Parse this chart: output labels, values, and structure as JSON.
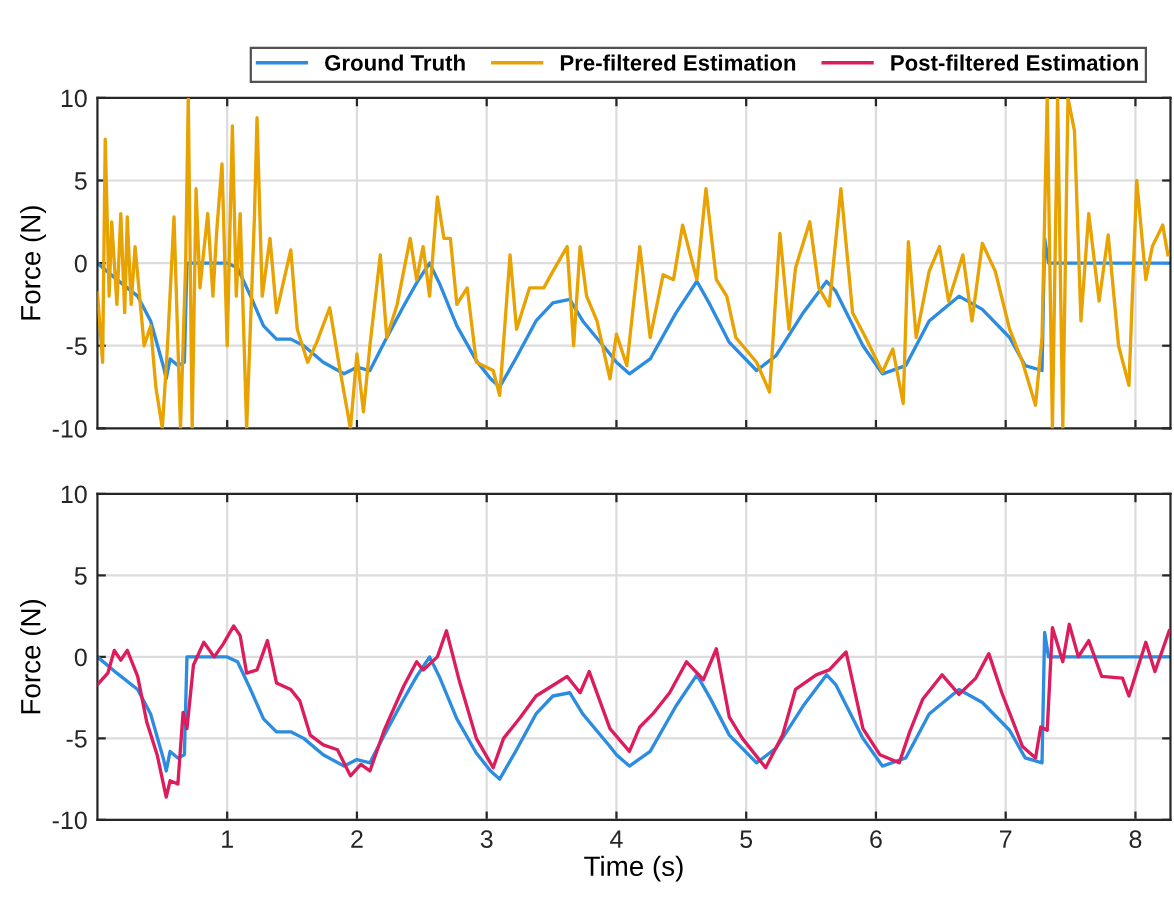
{
  "chart_data": [
    {
      "type": "line",
      "ylabel": "Force (N)",
      "xlim": [
        0,
        8.27
      ],
      "ylim": [
        -10,
        10
      ],
      "xticks": [
        1,
        2,
        3,
        4,
        5,
        6,
        7,
        8
      ],
      "yticks": [
        -10,
        -5,
        0,
        5,
        10
      ],
      "grid": true,
      "legend": "top",
      "tick_labels": "y",
      "line_style": "solid",
      "series": [
        {
          "name": "Ground Truth",
          "color": "#2b8ce0",
          "x": [
            0,
            0.15,
            0.31,
            0.41,
            0.51,
            0.53,
            0.56,
            0.62,
            0.67,
            0.68,
            0.69,
            0.87,
            1,
            1.08,
            1.18,
            1.28,
            1.38,
            1.49,
            1.59,
            1.74,
            1.9,
            2,
            2.1,
            2.21,
            2.36,
            2.46,
            2.56,
            2.64,
            2.77,
            2.92,
            3.03,
            3.1,
            3.23,
            3.38,
            3.51,
            3.64,
            3.74,
            3.95,
            4,
            4.1,
            4.26,
            4.46,
            4.62,
            4.72,
            4.87,
            5.08,
            5.23,
            5.44,
            5.62,
            5.69,
            5.9,
            6.05,
            6.23,
            6.41,
            6.64,
            6.82,
            7.03,
            7.15,
            7.28,
            7.3,
            7.33,
            8.25
          ],
          "values": [
            0,
            -1,
            -2,
            -3.5,
            -6.3,
            -7,
            -5.8,
            -6.2,
            -6,
            -3,
            0,
            0,
            0,
            -0.3,
            -2,
            -3.8,
            -4.6,
            -4.6,
            -5,
            -6,
            -6.7,
            -6.3,
            -6.5,
            -4.8,
            -2.6,
            -1.2,
            0,
            -1.3,
            -3.8,
            -5.9,
            -7,
            -7.5,
            -5.7,
            -3.5,
            -2.4,
            -2.2,
            -3.5,
            -5.5,
            -6,
            -6.7,
            -5.8,
            -3,
            -1.1,
            -2.5,
            -4.8,
            -6.5,
            -5.6,
            -3,
            -1.1,
            -1.7,
            -5,
            -6.7,
            -6.2,
            -3.5,
            -2,
            -2.8,
            -4.5,
            -6.2,
            -6.5,
            1.5,
            0,
            0
          ]
        },
        {
          "name": "Pre-filtered Estimation",
          "color": "#e8a202",
          "x": [
            0,
            0.04,
            0.06,
            0.09,
            0.11,
            0.15,
            0.18,
            0.21,
            0.23,
            0.26,
            0.29,
            0.36,
            0.41,
            0.45,
            0.5,
            0.54,
            0.59,
            0.64,
            0.68,
            0.7,
            0.73,
            0.76,
            0.79,
            0.85,
            0.89,
            0.92,
            0.96,
            1,
            1.04,
            1.07,
            1.1,
            1.15,
            1.21,
            1.23,
            1.27,
            1.33,
            1.38,
            1.49,
            1.54,
            1.62,
            1.69,
            1.79,
            1.87,
            1.95,
            2,
            2.05,
            2.1,
            2.18,
            2.23,
            2.31,
            2.41,
            2.46,
            2.51,
            2.56,
            2.62,
            2.67,
            2.72,
            2.77,
            2.85,
            2.92,
            3.05,
            3.1,
            3.18,
            3.23,
            3.33,
            3.44,
            3.51,
            3.62,
            3.67,
            3.72,
            3.77,
            3.85,
            3.95,
            4,
            4.08,
            4.18,
            4.26,
            4.36,
            4.44,
            4.51,
            4.62,
            4.69,
            4.77,
            4.85,
            4.92,
            5.08,
            5.18,
            5.26,
            5.33,
            5.38,
            5.49,
            5.56,
            5.64,
            5.73,
            5.82,
            5.92,
            6.05,
            6.13,
            6.21,
            6.25,
            6.31,
            6.41,
            6.49,
            6.56,
            6.67,
            6.74,
            6.82,
            6.92,
            7.03,
            7.13,
            7.23,
            7.28,
            7.32,
            7.36,
            7.4,
            7.44,
            7.48,
            7.53,
            7.58,
            7.64,
            7.72,
            7.79,
            7.87,
            7.95,
            8.01,
            8.08,
            8.13,
            8.21,
            8.25
          ],
          "values": [
            -1.8,
            -6,
            7.5,
            -2,
            2.5,
            -2.5,
            3,
            -3,
            2.8,
            -2.5,
            1,
            -5,
            -3.8,
            -7.5,
            -10,
            -5,
            2.8,
            -10,
            0,
            10,
            -10,
            4.5,
            -1.5,
            3,
            -2,
            2,
            6,
            -5,
            8.3,
            -2,
            3,
            -10,
            2.8,
            8.8,
            -2,
            1.5,
            -3,
            0.8,
            -4,
            -6,
            -4.8,
            -2.7,
            -6.5,
            -10,
            -5.5,
            -9,
            -5,
            0.5,
            -4.5,
            -2.5,
            1.5,
            -1,
            1,
            -2,
            4,
            1.5,
            1.5,
            -2.5,
            -1.5,
            -6,
            -6.5,
            -8,
            0.5,
            -4,
            -1.5,
            -1.5,
            -0.5,
            1,
            -5,
            1,
            -2,
            -3.5,
            -7,
            -4.3,
            -6.2,
            1,
            -4.5,
            -0.7,
            -1,
            2.3,
            -1,
            4.5,
            -1,
            -2,
            -4.5,
            -6,
            -7.8,
            1.8,
            -4,
            -0.3,
            2.5,
            -1.5,
            -2.6,
            4.5,
            -3,
            -4.5,
            -6.6,
            -5.2,
            -8.5,
            1.3,
            -4.5,
            -0.5,
            1,
            -2.3,
            0.5,
            -3.5,
            1.2,
            -0.5,
            -4,
            -6,
            -8.6,
            -4.5,
            10,
            -10,
            10,
            -10,
            10,
            8,
            -3.5,
            3,
            -2.3,
            1.7,
            -5,
            -7.4,
            5,
            -1,
            1,
            2.3,
            0.5
          ]
        }
      ]
    },
    {
      "type": "line",
      "xlabel": "Time (s)",
      "ylabel": "Force (N)",
      "xlim": [
        0,
        8.27
      ],
      "ylim": [
        -10,
        10
      ],
      "xticks": [
        1,
        2,
        3,
        4,
        5,
        6,
        7,
        8
      ],
      "yticks": [
        -10,
        -5,
        0,
        5,
        10
      ],
      "grid": true,
      "line_style": "solid",
      "series": [
        {
          "name": "Ground Truth",
          "color": "#2b8ce0",
          "x": [
            0,
            0.15,
            0.31,
            0.41,
            0.51,
            0.53,
            0.56,
            0.62,
            0.67,
            0.68,
            0.69,
            0.87,
            1,
            1.08,
            1.18,
            1.28,
            1.38,
            1.49,
            1.59,
            1.74,
            1.9,
            2,
            2.1,
            2.21,
            2.36,
            2.46,
            2.56,
            2.64,
            2.77,
            2.92,
            3.03,
            3.1,
            3.23,
            3.38,
            3.51,
            3.64,
            3.74,
            3.95,
            4,
            4.1,
            4.26,
            4.46,
            4.62,
            4.72,
            4.87,
            5.08,
            5.23,
            5.44,
            5.62,
            5.69,
            5.9,
            6.05,
            6.23,
            6.41,
            6.64,
            6.82,
            7.03,
            7.15,
            7.28,
            7.3,
            7.33,
            8.25
          ],
          "values": [
            0,
            -1,
            -2,
            -3.5,
            -6.3,
            -7,
            -5.8,
            -6.2,
            -6,
            -3,
            0,
            0,
            0,
            -0.3,
            -2,
            -3.8,
            -4.6,
            -4.6,
            -5,
            -6,
            -6.7,
            -6.3,
            -6.5,
            -4.8,
            -2.6,
            -1.2,
            0,
            -1.3,
            -3.8,
            -5.9,
            -7,
            -7.5,
            -5.7,
            -3.5,
            -2.4,
            -2.2,
            -3.5,
            -5.5,
            -6,
            -6.7,
            -5.8,
            -3,
            -1.1,
            -2.5,
            -4.8,
            -6.5,
            -5.6,
            -3,
            -1.1,
            -1.7,
            -5,
            -6.7,
            -6.2,
            -3.5,
            -2,
            -2.8,
            -4.5,
            -6.2,
            -6.5,
            1.5,
            0,
            0
          ]
        },
        {
          "name": "Post-filtered Estimation",
          "color": "#dc1c5c",
          "x": [
            0,
            0.08,
            0.13,
            0.18,
            0.23,
            0.31,
            0.38,
            0.46,
            0.53,
            0.56,
            0.62,
            0.66,
            0.69,
            0.74,
            0.82,
            0.9,
            0.97,
            1.05,
            1.1,
            1.15,
            1.23,
            1.31,
            1.38,
            1.49,
            1.56,
            1.64,
            1.74,
            1.85,
            1.95,
            2.03,
            2.1,
            2.21,
            2.36,
            2.46,
            2.51,
            2.62,
            2.69,
            2.79,
            2.92,
            3.05,
            3.13,
            3.26,
            3.38,
            3.54,
            3.62,
            3.72,
            3.79,
            3.95,
            4.1,
            4.18,
            4.28,
            4.41,
            4.54,
            4.67,
            4.77,
            4.87,
            4.97,
            5.15,
            5.28,
            5.38,
            5.54,
            5.64,
            5.77,
            5.9,
            6.03,
            6.18,
            6.26,
            6.36,
            6.51,
            6.64,
            6.77,
            6.87,
            6.97,
            7.13,
            7.23,
            7.27,
            7.32,
            7.36,
            7.44,
            7.49,
            7.56,
            7.64,
            7.74,
            7.9,
            7.95,
            8.08,
            8.15,
            8.26
          ],
          "values": [
            -1.7,
            -1,
            0.4,
            -0.2,
            0.4,
            -1.2,
            -4,
            -6,
            -8.6,
            -7.6,
            -7.8,
            -3.4,
            -4.4,
            -0.5,
            0.9,
            0,
            0.8,
            1.9,
            1.3,
            -1,
            -0.8,
            1,
            -1.6,
            -2,
            -2.7,
            -4.8,
            -5.4,
            -5.7,
            -7.3,
            -6.6,
            -7,
            -4.5,
            -1.8,
            -0.3,
            -0.8,
            0,
            1.6,
            -1.5,
            -5,
            -6.8,
            -5,
            -3.7,
            -2.4,
            -1.6,
            -1.2,
            -2.2,
            -0.9,
            -4.4,
            -5.8,
            -4.3,
            -3.5,
            -2.2,
            -0.3,
            -1.4,
            0.5,
            -3.7,
            -5,
            -6.8,
            -4.8,
            -2,
            -1.1,
            -0.8,
            0.3,
            -4.4,
            -6,
            -6.5,
            -4.6,
            -2.6,
            -1.1,
            -2.3,
            -1.3,
            0.2,
            -2.2,
            -5.5,
            -6.2,
            -4.3,
            -4.5,
            1.8,
            -0.3,
            2,
            0,
            1,
            -1.2,
            -1.3,
            -2.4,
            0.9,
            -0.9,
            1.6
          ]
        }
      ]
    }
  ]
}
